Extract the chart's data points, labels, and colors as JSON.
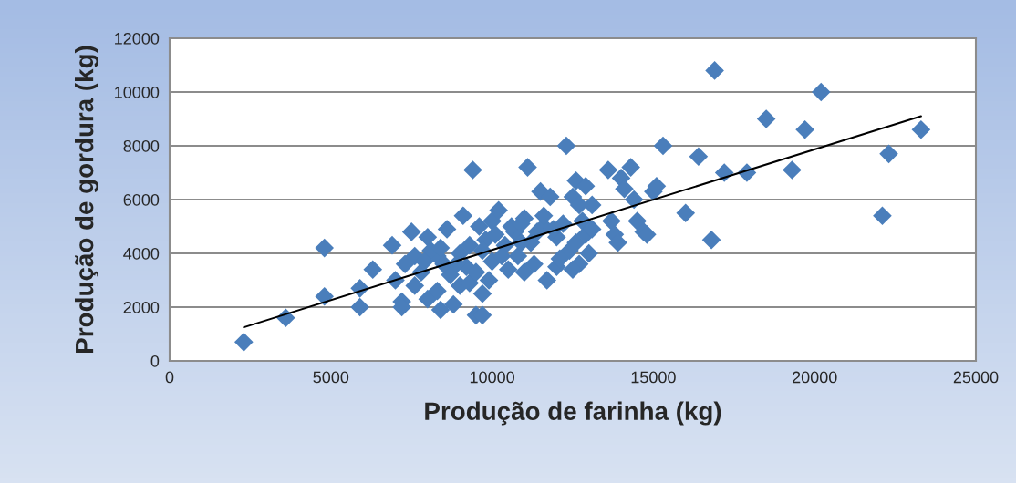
{
  "chart_data": {
    "type": "scatter",
    "xlabel": "Produção de farinha (kg)",
    "ylabel": "Produção de gordura (kg)",
    "xlim": [
      0,
      25000
    ],
    "xticks": [
      0,
      5000,
      10000,
      15000,
      20000,
      25000
    ],
    "ylim": [
      0,
      12000
    ],
    "yticks": [
      0,
      2000,
      4000,
      6000,
      8000,
      10000,
      12000
    ],
    "grid": "y",
    "series": [
      {
        "marker": "diamond",
        "color": "#4a7ebb",
        "x": [
          2300,
          3600,
          4800,
          4800,
          5900,
          5900,
          6300,
          6900,
          7000,
          7200,
          7200,
          7500,
          7600,
          7800,
          8000,
          8000,
          8300,
          8300,
          8400,
          8600,
          8700,
          8800,
          9000,
          9000,
          9100,
          9200,
          9400,
          9500,
          9700,
          9600,
          9700,
          9800,
          10000,
          10000,
          10200,
          10400,
          10500,
          10700,
          10800,
          11000,
          11100,
          11200,
          11300,
          11500,
          11600,
          11700,
          11800,
          12000,
          12000,
          12300,
          12400,
          12500,
          12600,
          12700,
          12800,
          12900,
          13000,
          13100,
          13600,
          13700,
          13800,
          13900,
          14000,
          14100,
          14300,
          14400,
          14500,
          14700,
          14800,
          15000,
          15100,
          15300,
          16000,
          16400,
          16800,
          16900,
          17200,
          17900,
          18500,
          19300,
          19700,
          20200,
          22100,
          22300,
          23300,
          7600,
          8100,
          8500,
          8900,
          9300,
          9300,
          9500,
          9900,
          10100,
          10300,
          10600,
          10900,
          11000,
          11400,
          11900,
          12100,
          12200,
          12500,
          12600,
          12900,
          13100,
          12700,
          11600,
          10900,
          9700,
          8400,
          7300,
          7900
        ],
        "values": [
          700,
          1600,
          4200,
          2400,
          2700,
          2000,
          3400,
          4300,
          3000,
          2200,
          2000,
          4800,
          3900,
          3300,
          4600,
          2300,
          3900,
          2600,
          1900,
          4900,
          3200,
          2100,
          4000,
          2800,
          5400,
          3500,
          7100,
          1700,
          1700,
          5000,
          2500,
          4500,
          3700,
          5200,
          5600,
          4300,
          3400,
          4800,
          3900,
          5300,
          7200,
          4400,
          3600,
          6300,
          5000,
          3000,
          6100,
          4600,
          3500,
          8000,
          4100,
          6100,
          6700,
          3600,
          5200,
          6500,
          4000,
          5800,
          7100,
          5200,
          4700,
          4400,
          6800,
          6400,
          7200,
          6000,
          5200,
          4800,
          4700,
          6300,
          6500,
          8000,
          5500,
          7600,
          4500,
          10800,
          7000,
          7000,
          9000,
          7100,
          8600,
          10000,
          5400,
          7700,
          8600,
          2800,
          4100,
          3600,
          3600,
          4300,
          2900,
          3300,
          3000,
          4700,
          3900,
          5000,
          4400,
          3300,
          4800,
          4900,
          3800,
          5100,
          3400,
          4400,
          4700,
          4900,
          5800,
          5400,
          5100,
          4100,
          4200,
          3600,
          3700
        ]
      },
      {
        "type": "line",
        "marker": "none",
        "color": "#000000",
        "x": [
          2300,
          23300
        ],
        "values": [
          1250,
          9100
        ]
      }
    ]
  }
}
